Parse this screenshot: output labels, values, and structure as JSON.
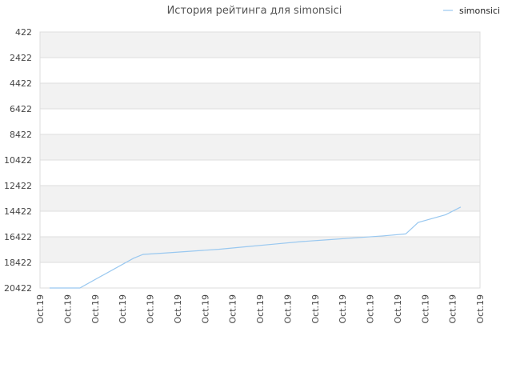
{
  "chart_data": {
    "type": "line",
    "title": "История рейтинга для simonsici",
    "legend_position": "top-right",
    "grid": true,
    "y_inverted": true,
    "ylim": [
      422,
      20422
    ],
    "y_ticks": [
      422,
      2422,
      4422,
      6422,
      8422,
      10422,
      12422,
      14422,
      16422,
      18422,
      20422
    ],
    "y_tick_labels": [
      "422",
      "2422",
      "4422",
      "6422",
      "8422",
      "10422",
      "12422",
      "14422",
      "16422",
      "18422",
      "20422"
    ],
    "x_tick_labels": [
      "Oct.19",
      "Oct.19",
      "Oct.19",
      "Oct.19",
      "Oct.19",
      "Oct.19",
      "Oct.19",
      "Oct.19",
      "Oct.19",
      "Oct.19",
      "Oct.19",
      "Oct.19",
      "Oct.19",
      "Oct.19",
      "Oct.19",
      "Oct.19",
      "Oct.19"
    ],
    "colors": {
      "series": "#99c8f0",
      "band": "#f2f2f2",
      "grid": "#dddddd"
    },
    "series": [
      {
        "name": "simonsici",
        "x": [
          0.35,
          1.45,
          3.4,
          3.75,
          4.5,
          5.5,
          6.5,
          7.5,
          8.5,
          9.5,
          10.5,
          11.5,
          12.5,
          13.3,
          13.75,
          14.75,
          15.3
        ],
        "values": [
          20422,
          20422,
          18100,
          17800,
          17700,
          17550,
          17400,
          17200,
          17000,
          16800,
          16650,
          16500,
          16350,
          16200,
          15300,
          14700,
          14100
        ]
      }
    ]
  }
}
